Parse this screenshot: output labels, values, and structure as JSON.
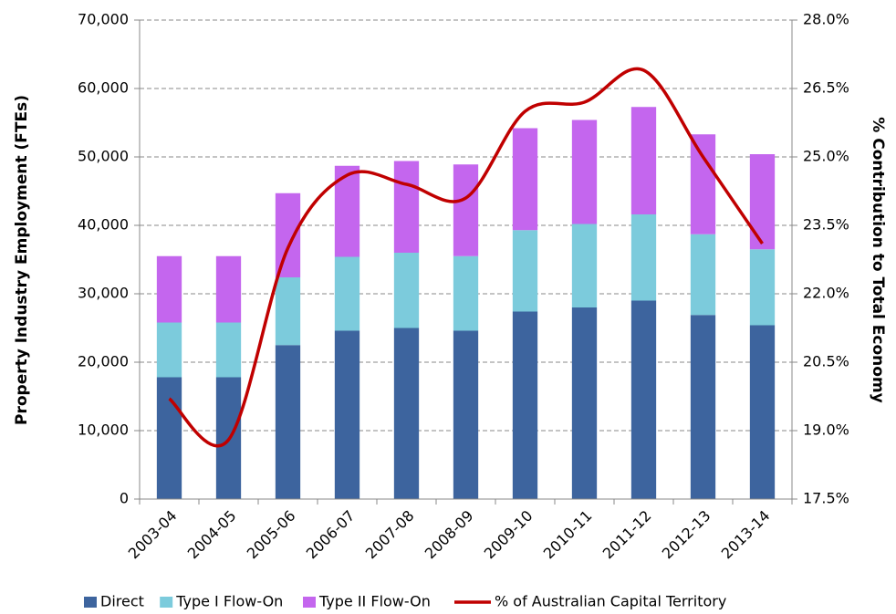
{
  "chart_data": {
    "type": "bar",
    "categories": [
      "2003-04",
      "2004-05",
      "2005-06",
      "2006-07",
      "2007-08",
      "2008-09",
      "2009-10",
      "2010-11",
      "2011-12",
      "2012-13",
      "2013-14"
    ],
    "series": [
      {
        "name": "Direct",
        "color": "#3d649e",
        "values": [
          17800,
          17800,
          22500,
          24600,
          25000,
          24600,
          27400,
          28000,
          29000,
          26900,
          25400
        ]
      },
      {
        "name": "Type I Flow-On",
        "color": "#7ccbdc",
        "values": [
          8000,
          8000,
          9900,
          10800,
          11000,
          10900,
          11900,
          12200,
          12600,
          11800,
          11100
        ]
      },
      {
        "name": "Type II Flow-On",
        "color": "#c466ee",
        "values": [
          9700,
          9700,
          12300,
          13300,
          13400,
          13400,
          14900,
          15200,
          15700,
          14600,
          13900
        ]
      },
      {
        "name": "% of Australian Capital Territory",
        "color": "#c00000",
        "type": "line",
        "axis": "y2",
        "values": [
          19.7,
          18.8,
          23.0,
          24.6,
          24.4,
          24.1,
          26.0,
          26.2,
          26.9,
          25.0,
          23.1
        ]
      }
    ],
    "y_label": "Property Industry Employment (FTEs)",
    "y2_label": "% Contribution to Total Economy",
    "ylim": [
      0,
      70000
    ],
    "yticks": [
      0,
      {
        "value": 10000,
        "label": "10,000"
      },
      {
        "value": 20000,
        "label": "20,000"
      },
      {
        "value": 30000,
        "label": "30,000"
      },
      {
        "value": 40000,
        "label": "40,000"
      },
      {
        "value": 50000,
        "label": "50,000"
      },
      {
        "value": 60000,
        "label": "60,000"
      },
      {
        "value": 70000,
        "label": "70,000"
      }
    ],
    "y2lim": [
      17.5,
      28
    ],
    "y2ticks": [
      {
        "value": 17.5,
        "label": "17.5%"
      },
      {
        "value": 19,
        "label": "19.0%"
      },
      {
        "value": 20.5,
        "label": "20.5%"
      },
      {
        "value": 22,
        "label": "22.0%"
      },
      {
        "value": 23.5,
        "label": "23.5%"
      },
      {
        "value": 25,
        "label": "25.0%"
      },
      {
        "value": 26.5,
        "label": "26.5%"
      },
      {
        "value": 28,
        "label": "28.0%"
      }
    ],
    "grid": true,
    "legend": "bottom"
  }
}
